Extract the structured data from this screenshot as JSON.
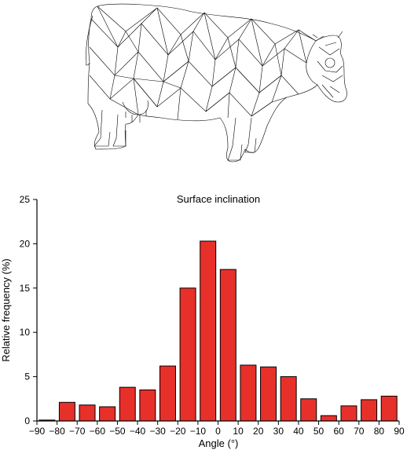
{
  "chart_data": {
    "type": "bar",
    "title": "Surface inclination",
    "xlabel": "Angle (°)",
    "ylabel": "Relative frequency (%)",
    "categories": [
      -85,
      -75,
      -65,
      -55,
      -45,
      -35,
      -25,
      -15,
      -5,
      5,
      15,
      25,
      35,
      45,
      55,
      65,
      75,
      85
    ],
    "values": [
      0.1,
      2.1,
      1.8,
      1.6,
      3.8,
      3.5,
      6.2,
      15.0,
      20.3,
      17.1,
      6.3,
      6.1,
      5.0,
      2.5,
      0.6,
      1.7,
      2.4,
      2.8
    ],
    "xlim": [
      -90,
      90
    ],
    "ylim": [
      0,
      25
    ],
    "xticks": [
      -90,
      -80,
      -70,
      -60,
      -50,
      -40,
      -30,
      -20,
      -10,
      0,
      10,
      20,
      30,
      40,
      50,
      60,
      70,
      80,
      90
    ],
    "yticks": [
      0,
      5,
      10,
      15,
      20,
      25
    ],
    "bar_color": "#e8302a",
    "grid": false,
    "legend": "none"
  },
  "illustration": {
    "icon": "cow-wireframe-mesh"
  }
}
